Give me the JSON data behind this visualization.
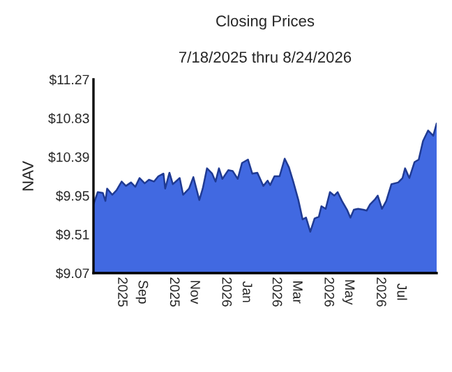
{
  "chart_data": {
    "type": "area",
    "title": "Closing Prices",
    "subtitle": "7/18/2025 thru 8/24/2026",
    "ylabel": "NAV",
    "x": [
      "2025-07-18",
      "2025-07-23",
      "2025-07-29",
      "2025-08-01",
      "2025-08-03",
      "2025-08-09",
      "2025-08-14",
      "2025-08-20",
      "2025-08-25",
      "2025-08-31",
      "2025-09-05",
      "2025-09-10",
      "2025-09-16",
      "2025-09-21",
      "2025-09-27",
      "2025-10-02",
      "2025-10-08",
      "2025-10-10",
      "2025-10-15",
      "2025-10-19",
      "2025-10-27",
      "2025-10-31",
      "2025-11-07",
      "2025-11-12",
      "2025-11-19",
      "2025-11-23",
      "2025-11-28",
      "2025-12-04",
      "2025-12-08",
      "2025-12-12",
      "2025-12-16",
      "2025-12-23",
      "2025-12-28",
      "2026-01-03",
      "2026-01-08",
      "2026-01-15",
      "2026-01-20",
      "2026-01-26",
      "2026-02-02",
      "2026-02-07",
      "2026-02-10",
      "2026-02-15",
      "2026-02-21",
      "2026-02-27",
      "2026-03-04",
      "2026-03-09",
      "2026-03-15",
      "2026-03-20",
      "2026-03-24",
      "2026-03-29",
      "2026-04-03",
      "2026-04-08",
      "2026-04-11",
      "2026-04-16",
      "2026-04-21",
      "2026-04-26",
      "2026-04-30",
      "2026-05-05",
      "2026-05-11",
      "2026-05-15",
      "2026-05-19",
      "2026-05-24",
      "2026-05-30",
      "2026-06-03",
      "2026-06-07",
      "2026-06-13",
      "2026-06-16",
      "2026-06-21",
      "2026-06-26",
      "2026-07-02",
      "2026-07-10",
      "2026-07-15",
      "2026-07-18",
      "2026-07-23",
      "2026-07-29",
      "2026-08-03",
      "2026-08-08",
      "2026-08-14",
      "2026-08-20",
      "2026-08-24"
    ],
    "series": [
      {
        "color": "#4169e1",
        "values": [
          9.85,
          9.99,
          9.98,
          9.89,
          10.03,
          9.96,
          10.01,
          10.11,
          10.06,
          10.1,
          10.05,
          10.15,
          10.09,
          10.13,
          10.11,
          10.17,
          10.2,
          10.03,
          10.21,
          10.08,
          10.15,
          9.96,
          10.03,
          10.16,
          9.9,
          10.03,
          10.26,
          10.2,
          10.11,
          10.26,
          10.14,
          10.24,
          10.23,
          10.14,
          10.32,
          10.36,
          10.2,
          10.21,
          10.06,
          10.12,
          10.07,
          10.17,
          10.17,
          10.37,
          10.27,
          10.11,
          9.9,
          9.68,
          9.7,
          9.54,
          9.69,
          9.71,
          9.83,
          9.8,
          9.99,
          9.95,
          9.99,
          9.89,
          9.79,
          9.7,
          9.79,
          9.8,
          9.79,
          9.78,
          9.85,
          9.91,
          9.95,
          9.8,
          9.89,
          10.08,
          10.1,
          10.15,
          10.26,
          10.15,
          10.33,
          10.36,
          10.57,
          10.69,
          10.63,
          10.77
        ]
      }
    ],
    "xlim": [
      "2025-07-18",
      "2026-08-24"
    ],
    "xticks": [
      {
        "value": "2025-09-01",
        "label": "Sep  2025"
      },
      {
        "value": "2025-11-01",
        "label": "Nov  2025"
      },
      {
        "value": "2026-01-01",
        "label": "Jan  2026"
      },
      {
        "value": "2026-03-01",
        "label": "Mar  2026"
      },
      {
        "value": "2026-05-01",
        "label": "May  2026"
      },
      {
        "value": "2026-07-01",
        "label": "Jul  2026"
      }
    ],
    "ylim": [
      9.07,
      11.27
    ],
    "yticks": [
      {
        "value": 9.07,
        "label": "$9.07"
      },
      {
        "value": 9.51,
        "label": "$9.51"
      },
      {
        "value": 9.95,
        "label": "$9.95"
      },
      {
        "value": 10.39,
        "label": "$10.39"
      },
      {
        "value": 10.83,
        "label": "$10.83"
      },
      {
        "value": 11.27,
        "label": "$11.27"
      }
    ],
    "grid": false,
    "legend": false
  }
}
